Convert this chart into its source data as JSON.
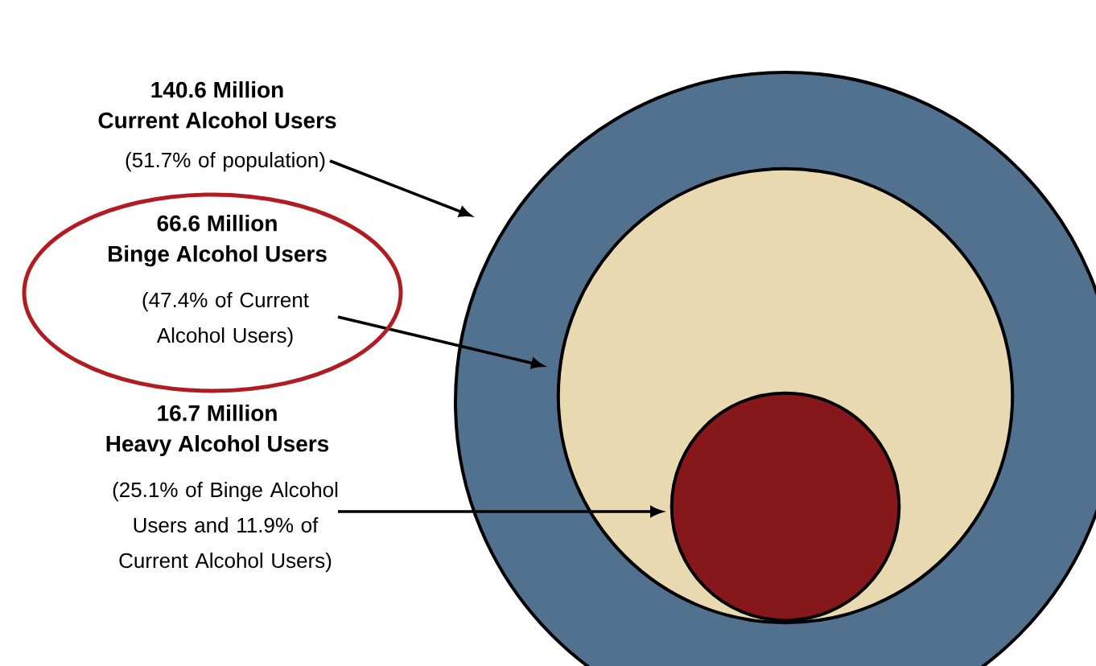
{
  "chart_data": {
    "type": "other",
    "categories": [
      "Current Alcohol Users",
      "Binge Alcohol Users",
      "Heavy Alcohol Users"
    ],
    "values": [
      140.6,
      66.6,
      16.7
    ],
    "value_labels": [
      "140.6 Million",
      "66.6 Million",
      "16.7 Million"
    ],
    "colors": [
      "#51718f",
      "#e9d9b1",
      "#86171b"
    ],
    "annotations": [
      "(51.7% of population)",
      "(47.4% of Current Alcohol Users)",
      "(25.1% of Binge Alcohol Users and 11.9% of Current Alcohol Users)"
    ]
  }
}
